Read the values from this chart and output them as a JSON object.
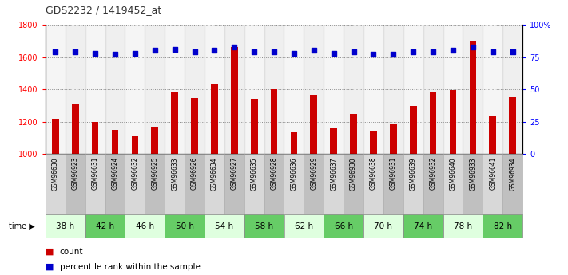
{
  "title": "GDS2232 / 1419452_at",
  "samples": [
    "GSM96630",
    "GSM96923",
    "GSM96631",
    "GSM96924",
    "GSM96632",
    "GSM96925",
    "GSM96633",
    "GSM96926",
    "GSM96634",
    "GSM96927",
    "GSM96635",
    "GSM96928",
    "GSM96636",
    "GSM96929",
    "GSM96637",
    "GSM96930",
    "GSM96638",
    "GSM96931",
    "GSM96639",
    "GSM96932",
    "GSM96640",
    "GSM96933",
    "GSM96641",
    "GSM96934"
  ],
  "counts": [
    1220,
    1310,
    1200,
    1150,
    1110,
    1170,
    1380,
    1345,
    1430,
    1660,
    1340,
    1400,
    1140,
    1365,
    1160,
    1250,
    1145,
    1190,
    1295,
    1380,
    1395,
    1700,
    1235,
    1350
  ],
  "percentiles": [
    79,
    79,
    78,
    77,
    78,
    80,
    81,
    79,
    80,
    83,
    79,
    79,
    78,
    80,
    78,
    79,
    77,
    77,
    79,
    79,
    80,
    83,
    79,
    79
  ],
  "time_labels": [
    "38 h",
    "42 h",
    "46 h",
    "50 h",
    "54 h",
    "58 h",
    "62 h",
    "66 h",
    "70 h",
    "74 h",
    "78 h",
    "82 h"
  ],
  "ylim_left": [
    1000,
    1800
  ],
  "ylim_right": [
    0,
    100
  ],
  "yticks_left": [
    1000,
    1200,
    1400,
    1600,
    1800
  ],
  "yticks_right": [
    0,
    25,
    50,
    75,
    100
  ],
  "bar_color": "#cc0000",
  "dot_color": "#0000cc",
  "gray_light": "#d8d8d8",
  "gray_dark": "#c0c0c0",
  "green_light": "#dfffdf",
  "green_dark": "#66cc66",
  "grid_color": "#888888",
  "legend_count_color": "#cc0000",
  "legend_pct_color": "#0000cc"
}
